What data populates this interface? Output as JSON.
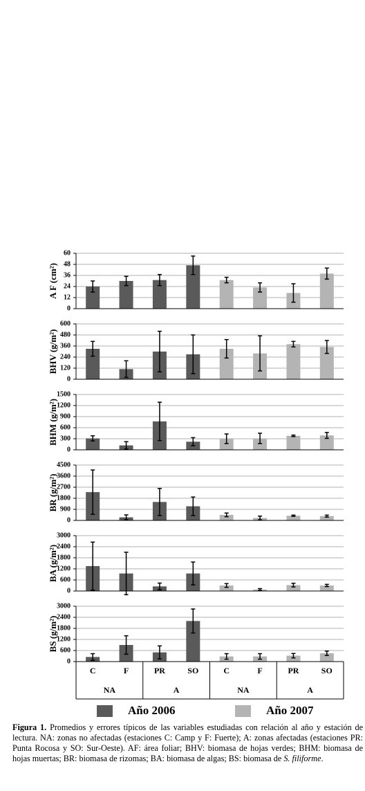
{
  "chart_data": [
    {
      "type": "bar",
      "ylabel": "A F (cm²)",
      "ylim": [
        0,
        60
      ],
      "yticks": [
        0,
        12,
        24,
        36,
        48,
        60
      ],
      "grid": true,
      "series": [
        {
          "color": "#5a5a5a",
          "values": [
            24,
            30,
            31,
            47,
            null,
            null,
            null,
            null
          ],
          "errors": [
            6,
            5,
            6,
            10,
            null,
            null,
            null,
            null
          ]
        },
        {
          "color": "#b4b4b4",
          "values": [
            null,
            null,
            null,
            null,
            31,
            23,
            17,
            38
          ],
          "errors": [
            null,
            null,
            null,
            null,
            3,
            5,
            10,
            6
          ]
        }
      ]
    },
    {
      "type": "bar",
      "ylabel": "BHV (g/m²)",
      "ylim": [
        0,
        600
      ],
      "yticks": [
        0,
        120,
        240,
        360,
        480,
        600
      ],
      "grid": true,
      "series": [
        {
          "color": "#5a5a5a",
          "values": [
            330,
            110,
            300,
            270,
            null,
            null,
            null,
            null
          ],
          "errors": [
            80,
            90,
            220,
            210,
            null,
            null,
            null,
            null
          ]
        },
        {
          "color": "#b4b4b4",
          "values": [
            null,
            null,
            null,
            null,
            330,
            280,
            380,
            350
          ],
          "errors": [
            null,
            null,
            null,
            null,
            100,
            190,
            30,
            70
          ]
        }
      ]
    },
    {
      "type": "bar",
      "ylabel": "BHM (g/m²)",
      "ylim": [
        0,
        1500
      ],
      "yticks": [
        0,
        300,
        600,
        900,
        1200,
        1500
      ],
      "grid": true,
      "series": [
        {
          "color": "#5a5a5a",
          "values": [
            310,
            120,
            770,
            220,
            null,
            null,
            null,
            null
          ],
          "errors": [
            70,
            100,
            520,
            110,
            null,
            null,
            null,
            null
          ]
        },
        {
          "color": "#b4b4b4",
          "values": [
            null,
            null,
            null,
            null,
            300,
            310,
            380,
            390
          ],
          "errors": [
            null,
            null,
            null,
            null,
            130,
            140,
            20,
            80
          ]
        }
      ]
    },
    {
      "type": "bar",
      "ylabel": "BR (g/m²)",
      "ylim": [
        0,
        4500
      ],
      "yticks": [
        0,
        900,
        1800,
        2700,
        3600,
        4500
      ],
      "grid": true,
      "series": [
        {
          "color": "#5a5a5a",
          "values": [
            2300,
            250,
            1500,
            1150,
            null,
            null,
            null,
            null
          ],
          "errors": [
            1800,
            200,
            1100,
            750,
            null,
            null,
            null,
            null
          ]
        },
        {
          "color": "#b4b4b4",
          "values": [
            null,
            null,
            null,
            null,
            450,
            200,
            380,
            350
          ],
          "errors": [
            null,
            null,
            null,
            null,
            150,
            150,
            50,
            80
          ]
        }
      ]
    },
    {
      "type": "bar",
      "ylabel": "BA (g/m²)",
      "ylim": [
        0,
        3000
      ],
      "yticks": [
        0,
        600,
        1200,
        1800,
        2400,
        3000
      ],
      "grid": true,
      "series": [
        {
          "color": "#5a5a5a",
          "values": [
            1350,
            950,
            250,
            950,
            null,
            null,
            null,
            null
          ],
          "errors": [
            1300,
            1150,
            180,
            620,
            null,
            null,
            null,
            null
          ]
        },
        {
          "color": "#b4b4b4",
          "values": [
            null,
            null,
            null,
            null,
            300,
            80,
            320,
            300
          ],
          "errors": [
            null,
            null,
            null,
            null,
            100,
            50,
            100,
            60
          ]
        }
      ]
    },
    {
      "type": "bar",
      "ylabel": "BS (g/m²)",
      "ylim": [
        0,
        3000
      ],
      "yticks": [
        0,
        600,
        1200,
        1800,
        2400,
        3000
      ],
      "grid": true,
      "categories": [
        "C",
        "F",
        "PR",
        "SO",
        "C",
        "F",
        "PR",
        "SO"
      ],
      "groups": [
        "NA",
        "A",
        "NA",
        "A"
      ],
      "series": [
        {
          "name": "Año 2006",
          "color": "#5a5a5a",
          "values": [
            250,
            900,
            500,
            2200,
            null,
            null,
            null,
            null
          ],
          "errors": [
            180,
            500,
            350,
            650,
            null,
            null,
            null,
            null
          ]
        },
        {
          "name": "Año 2007",
          "color": "#b4b4b4",
          "values": [
            null,
            null,
            null,
            null,
            280,
            280,
            320,
            450
          ],
          "errors": [
            null,
            null,
            null,
            null,
            150,
            150,
            120,
            120
          ]
        }
      ]
    }
  ],
  "caption": {
    "label": "Figura 1.",
    "text": "Promedios y errores típicos de las variables estudiadas con relación al año y estación de lectura. NA: zonas no afectadas (estaciones C: Camp y F: Fuerte); A: zonas afectadas (estaciones PR: Punta Rocosa y SO: Sur-Oeste). AF: área foliar; BHV: biomasa de hojas verdes; BHM: biomasa de hojas muertas; BR: biomasa de rizomas; BA: biomasa de algas; BS: biomasa de ",
    "italic": "S. filiforme",
    "end": "."
  }
}
